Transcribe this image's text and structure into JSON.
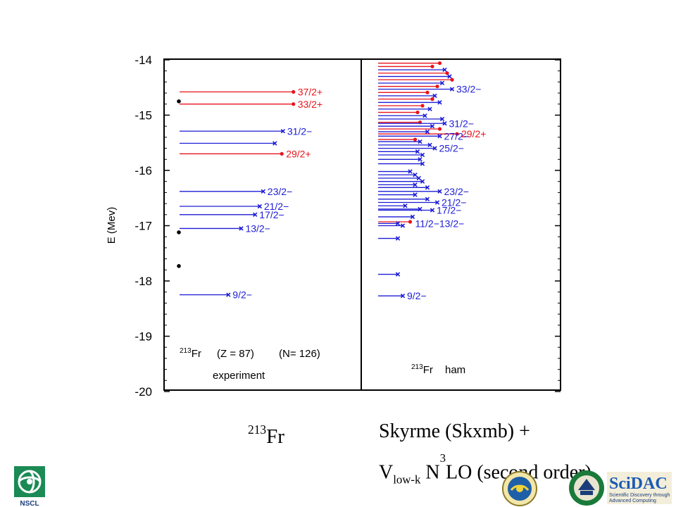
{
  "chart_data": {
    "type": "level-scheme",
    "ylabel": "E (Mev)",
    "ylim": [
      -20,
      -14
    ],
    "yticks": [
      -14,
      -15,
      -16,
      -17,
      -18,
      -19,
      -20
    ],
    "colors": {
      "positive_parity": "#e8131b",
      "negative_parity": "#1c1cd6",
      "frame": "#000000"
    },
    "panels": [
      {
        "id": "experiment",
        "nucleus_mass": "213",
        "nucleus_symbol": "Fr",
        "z_text": "(Z = 87)",
        "n_text": "(N= 126)",
        "label": "experiment",
        "dots": [
          -14.75,
          -17.12,
          -17.73
        ],
        "levels": [
          {
            "energy": -14.58,
            "parity": "+",
            "marker": "dot",
            "length": 0.98,
            "label": "37/2+"
          },
          {
            "energy": -14.8,
            "parity": "+",
            "marker": "dot",
            "length": 0.98,
            "label": "33/2+"
          },
          {
            "energy": -15.29,
            "parity": "-",
            "marker": "x",
            "length": 0.89,
            "label": "31/2−"
          },
          {
            "energy": -15.51,
            "parity": "-",
            "marker": "x",
            "length": 0.82,
            "label": ""
          },
          {
            "energy": -15.7,
            "parity": "+",
            "marker": "dot",
            "length": 0.88,
            "label": "29/2+"
          },
          {
            "energy": -16.38,
            "parity": "-",
            "marker": "x",
            "length": 0.72,
            "label": "23/2−"
          },
          {
            "energy": -16.65,
            "parity": "-",
            "marker": "x",
            "length": 0.69,
            "label": "21/2−"
          },
          {
            "energy": -16.8,
            "parity": "-",
            "marker": "x",
            "length": 0.65,
            "label": "17/2−"
          },
          {
            "energy": -17.05,
            "parity": "-",
            "marker": "x",
            "length": 0.53,
            "label": "13/2−"
          },
          {
            "energy": -18.25,
            "parity": "-",
            "marker": "x",
            "length": 0.42,
            "label": "9/2−"
          }
        ]
      },
      {
        "id": "theory",
        "nucleus_mass": "213",
        "nucleus_symbol": "Fr",
        "label": "ham",
        "levels": [
          {
            "energy": -14.06,
            "parity": "+",
            "marker": "dot",
            "length": 0.5,
            "label": ""
          },
          {
            "energy": -14.12,
            "parity": "+",
            "marker": "dot",
            "length": 0.44,
            "label": ""
          },
          {
            "energy": -14.18,
            "parity": "-",
            "marker": "x",
            "length": 0.54,
            "label": ""
          },
          {
            "energy": -14.24,
            "parity": "+",
            "marker": "dot",
            "length": 0.56,
            "label": ""
          },
          {
            "energy": -14.3,
            "parity": "-",
            "marker": "x",
            "length": 0.58,
            "label": ""
          },
          {
            "energy": -14.36,
            "parity": "+",
            "marker": "dot",
            "length": 0.6,
            "label": ""
          },
          {
            "energy": -14.42,
            "parity": "-",
            "marker": "x",
            "length": 0.52,
            "label": ""
          },
          {
            "energy": -14.48,
            "parity": "+",
            "marker": "dot",
            "length": 0.48,
            "label": ""
          },
          {
            "energy": -14.53,
            "parity": "-",
            "marker": "x",
            "length": 0.6,
            "label": "33/2−"
          },
          {
            "energy": -14.59,
            "parity": "+",
            "marker": "dot",
            "length": 0.4,
            "label": ""
          },
          {
            "energy": -14.65,
            "parity": "-",
            "marker": "x",
            "length": 0.46,
            "label": ""
          },
          {
            "energy": -14.71,
            "parity": "+",
            "marker": "dot",
            "length": 0.44,
            "label": ""
          },
          {
            "energy": -14.77,
            "parity": "-",
            "marker": "x",
            "length": 0.5,
            "label": ""
          },
          {
            "energy": -14.83,
            "parity": "+",
            "marker": "dot",
            "length": 0.36,
            "label": ""
          },
          {
            "energy": -14.89,
            "parity": "-",
            "marker": "x",
            "length": 0.42,
            "label": ""
          },
          {
            "energy": -14.95,
            "parity": "+",
            "marker": "dot",
            "length": 0.32,
            "label": ""
          },
          {
            "energy": -15.01,
            "parity": "-",
            "marker": "x",
            "length": 0.38,
            "label": ""
          },
          {
            "energy": -15.07,
            "parity": "-",
            "marker": "x",
            "length": 0.52,
            "label": ""
          },
          {
            "energy": -15.13,
            "parity": "+",
            "marker": "dot",
            "length": 0.34,
            "label": ""
          },
          {
            "energy": -15.15,
            "parity": "-",
            "marker": "x",
            "length": 0.54,
            "label": "31/2−"
          },
          {
            "energy": -15.2,
            "parity": "-",
            "marker": "x",
            "length": 0.44,
            "label": ""
          },
          {
            "energy": -15.25,
            "parity": "+",
            "marker": "dot",
            "length": 0.5,
            "label": ""
          },
          {
            "energy": -15.3,
            "parity": "-",
            "marker": "x",
            "length": 0.4,
            "label": ""
          },
          {
            "energy": -15.34,
            "parity": "+",
            "marker": "dot",
            "length": 0.64,
            "label": "29/2+"
          },
          {
            "energy": -15.38,
            "parity": "-",
            "marker": "x",
            "length": 0.5,
            "label": "27/2−"
          },
          {
            "energy": -15.44,
            "parity": "+",
            "marker": "dot",
            "length": 0.3,
            "label": ""
          },
          {
            "energy": -15.48,
            "parity": "-",
            "marker": "x",
            "length": 0.34,
            "label": ""
          },
          {
            "energy": -15.54,
            "parity": "-",
            "marker": "x",
            "length": 0.42,
            "label": ""
          },
          {
            "energy": -15.6,
            "parity": "-",
            "marker": "x",
            "length": 0.46,
            "label": "25/2−"
          },
          {
            "energy": -15.66,
            "parity": "-",
            "marker": "x",
            "length": 0.32,
            "label": ""
          },
          {
            "energy": -15.72,
            "parity": "-",
            "marker": "x",
            "length": 0.36,
            "label": ""
          },
          {
            "energy": -15.8,
            "parity": "-",
            "marker": "x",
            "length": 0.34,
            "label": ""
          },
          {
            "energy": -15.88,
            "parity": "-",
            "marker": "x",
            "length": 0.36,
            "label": ""
          },
          {
            "energy": -16.02,
            "parity": "-",
            "marker": "x",
            "length": 0.26,
            "label": ""
          },
          {
            "energy": -16.08,
            "parity": "-",
            "marker": "x",
            "length": 0.3,
            "label": ""
          },
          {
            "energy": -16.14,
            "parity": "-",
            "marker": "x",
            "length": 0.33,
            "label": ""
          },
          {
            "energy": -16.2,
            "parity": "-",
            "marker": "x",
            "length": 0.36,
            "label": ""
          },
          {
            "energy": -16.26,
            "parity": "-",
            "marker": "x",
            "length": 0.3,
            "label": ""
          },
          {
            "energy": -16.31,
            "parity": "-",
            "marker": "x",
            "length": 0.4,
            "label": ""
          },
          {
            "energy": -16.38,
            "parity": "-",
            "marker": "x",
            "length": 0.5,
            "label": "23/2−"
          },
          {
            "energy": -16.44,
            "parity": "-",
            "marker": "x",
            "length": 0.3,
            "label": ""
          },
          {
            "energy": -16.52,
            "parity": "-",
            "marker": "x",
            "length": 0.4,
            "label": ""
          },
          {
            "energy": -16.58,
            "parity": "-",
            "marker": "x",
            "length": 0.48,
            "label": "21/2−"
          },
          {
            "energy": -16.64,
            "parity": "-",
            "marker": "x",
            "length": 0.22,
            "label": ""
          },
          {
            "energy": -16.7,
            "parity": "-",
            "marker": "x",
            "length": 0.34,
            "label": ""
          },
          {
            "energy": -16.72,
            "parity": "-",
            "marker": "x",
            "length": 0.44,
            "label": "17/2−"
          },
          {
            "energy": -16.84,
            "parity": "-",
            "marker": "x",
            "length": 0.28,
            "label": ""
          },
          {
            "energy": -16.93,
            "parity": "+",
            "marker": "dot",
            "length": 0.26,
            "label": ""
          },
          {
            "energy": -16.96,
            "parity": "-",
            "marker": "x",
            "length": 0.16,
            "label": ""
          },
          {
            "energy": -17.0,
            "parity": "-",
            "marker": "x",
            "length": 0.2,
            "label": ""
          },
          {
            "energy": -17.23,
            "parity": "-",
            "marker": "x",
            "length": 0.16,
            "label": ""
          },
          {
            "energy": -17.88,
            "parity": "-",
            "marker": "x",
            "length": 0.16,
            "label": ""
          },
          {
            "energy": -18.27,
            "parity": "-",
            "marker": "x",
            "length": 0.2,
            "label": "9/2−"
          }
        ],
        "level_labels": [
          {
            "energy": -16.96,
            "text": "11/2−13/2−"
          }
        ]
      }
    ]
  },
  "captions": {
    "left_mass": "213",
    "left_symbol": "Fr",
    "right_line1": "Skyrme (Skxmb) +",
    "right_v": "V",
    "right_sub": "low-k",
    "right_n": " N",
    "right_sup": "3",
    "right_rest": "LO (second order)"
  },
  "logos": {
    "nscl_text": "NSCL",
    "scidac_title": "SciDAC",
    "scidac_line1": "Scientific Discovery through",
    "scidac_line2": "Advanced Computing"
  }
}
